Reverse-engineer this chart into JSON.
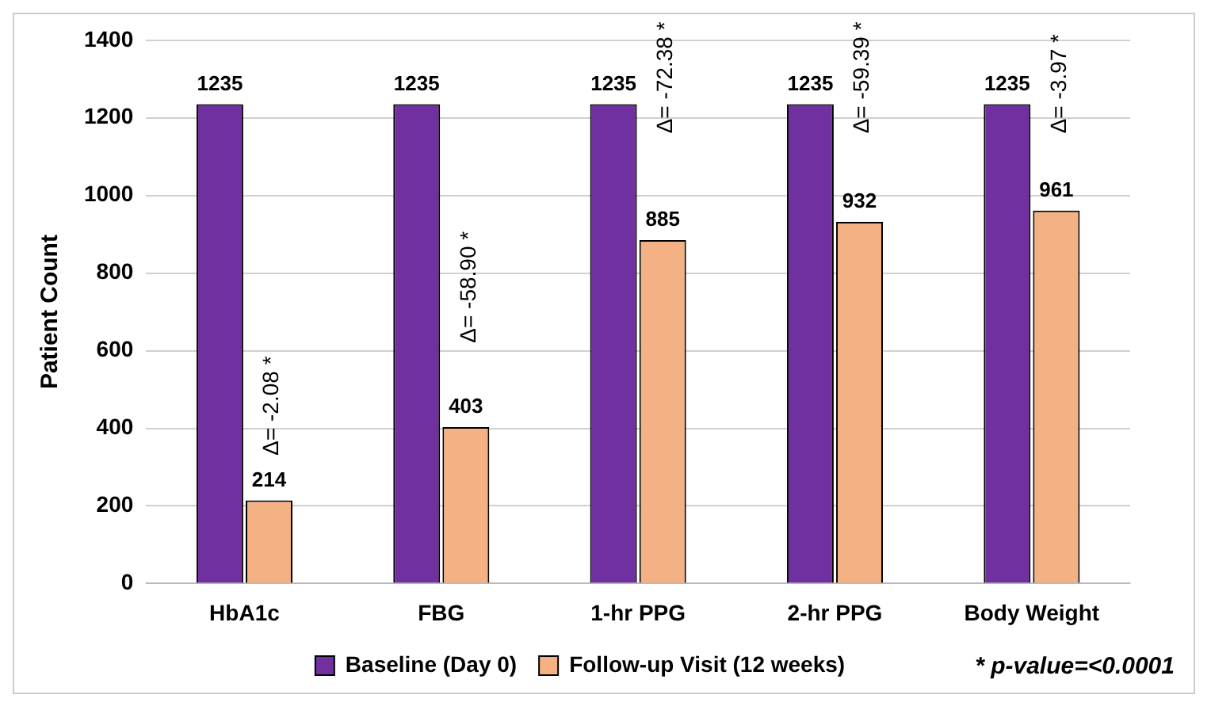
{
  "chart_data": {
    "type": "bar",
    "ylabel": "Patient Count",
    "categories": [
      "HbA1c",
      "FBG",
      "1-hr PPG",
      "2-hr PPG",
      "Body Weight"
    ],
    "series": [
      {
        "name": "Baseline (Day 0)",
        "color": "#7030a0",
        "values": [
          1235,
          1235,
          1235,
          1235,
          1235
        ]
      },
      {
        "name": "Follow-up Visit (12 weeks)",
        "color": "#f4b183",
        "values": [
          214,
          403,
          885,
          932,
          961
        ]
      }
    ],
    "ylim": [
      0,
      1400
    ],
    "yticks": [
      0,
      200,
      400,
      600,
      800,
      1000,
      1200,
      1400
    ],
    "grid": "y",
    "legend": "bottom",
    "data_labels": true,
    "annotations": [
      {
        "text": "Δ= -2.08 *",
        "x": "HbA1c",
        "y": 330
      },
      {
        "text": "Δ= -58.90 *",
        "x": "FBG",
        "y": 620
      },
      {
        "text": "Δ= -72.38 *",
        "x": "1-hr PPG",
        "y": 1160
      },
      {
        "text": "Δ= -59.39 *",
        "x": "2-hr PPG",
        "y": 1160
      },
      {
        "text": "Δ= -3.97 *",
        "x": "Body Weight",
        "y": 1160
      },
      "* p-value=<0.0001"
    ]
  }
}
